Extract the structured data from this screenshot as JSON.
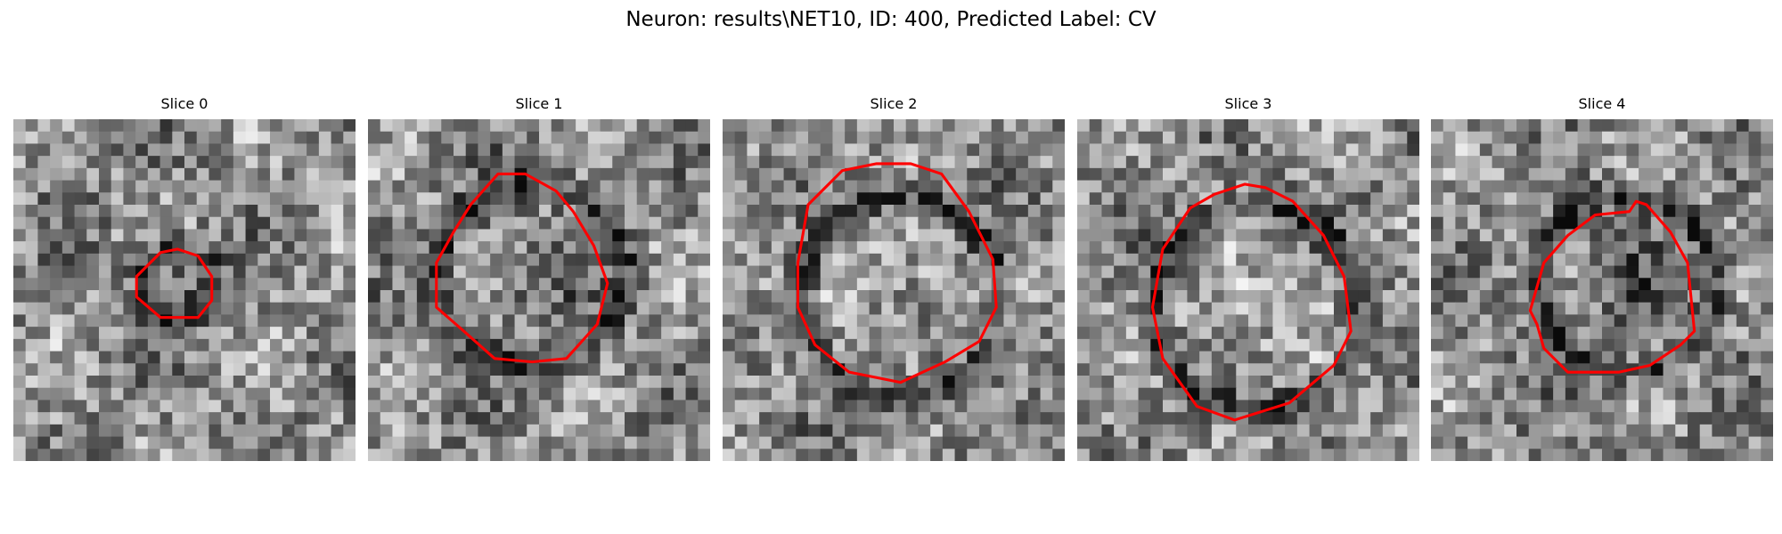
{
  "figure": {
    "title": "Neuron: results\\NET10, ID: 400, Predicted Label: CV"
  },
  "colors": {
    "contour": "#ff0000"
  },
  "panels": [
    {
      "title": "Slice 0",
      "center": [
        0.48,
        0.48
      ],
      "radius": 0.1,
      "darkness": 0.45,
      "contour": [
        [
          0.48,
          0.38
        ],
        [
          0.54,
          0.4
        ],
        [
          0.58,
          0.46
        ],
        [
          0.58,
          0.53
        ],
        [
          0.54,
          0.58
        ],
        [
          0.43,
          0.58
        ],
        [
          0.36,
          0.52
        ],
        [
          0.36,
          0.46
        ],
        [
          0.43,
          0.39
        ]
      ]
    },
    {
      "title": "Slice 1",
      "center": [
        0.48,
        0.45
      ],
      "radius": 0.27,
      "darkness": 0.25,
      "contour": [
        [
          0.3,
          0.25
        ],
        [
          0.38,
          0.16
        ],
        [
          0.46,
          0.16
        ],
        [
          0.55,
          0.21
        ],
        [
          0.6,
          0.27
        ],
        [
          0.66,
          0.37
        ],
        [
          0.7,
          0.48
        ],
        [
          0.67,
          0.6
        ],
        [
          0.58,
          0.7
        ],
        [
          0.48,
          0.71
        ],
        [
          0.37,
          0.7
        ],
        [
          0.28,
          0.62
        ],
        [
          0.2,
          0.55
        ],
        [
          0.2,
          0.42
        ],
        [
          0.25,
          0.33
        ]
      ]
    },
    {
      "title": "Slice 2",
      "center": [
        0.52,
        0.52
      ],
      "radius": 0.29,
      "darkness": -0.3,
      "contour": [
        [
          0.25,
          0.25
        ],
        [
          0.35,
          0.15
        ],
        [
          0.45,
          0.13
        ],
        [
          0.55,
          0.13
        ],
        [
          0.64,
          0.16
        ],
        [
          0.72,
          0.27
        ],
        [
          0.79,
          0.41
        ],
        [
          0.8,
          0.55
        ],
        [
          0.75,
          0.65
        ],
        [
          0.65,
          0.71
        ],
        [
          0.52,
          0.77
        ],
        [
          0.37,
          0.74
        ],
        [
          0.27,
          0.66
        ],
        [
          0.22,
          0.55
        ],
        [
          0.22,
          0.42
        ]
      ]
    },
    {
      "title": "Slice 3",
      "center": [
        0.52,
        0.55
      ],
      "radius": 0.3,
      "darkness": -0.3,
      "contour": [
        [
          0.33,
          0.26
        ],
        [
          0.4,
          0.22
        ],
        [
          0.49,
          0.19
        ],
        [
          0.55,
          0.2
        ],
        [
          0.63,
          0.24
        ],
        [
          0.72,
          0.34
        ],
        [
          0.78,
          0.46
        ],
        [
          0.8,
          0.62
        ],
        [
          0.75,
          0.72
        ],
        [
          0.62,
          0.83
        ],
        [
          0.46,
          0.88
        ],
        [
          0.35,
          0.84
        ],
        [
          0.25,
          0.7
        ],
        [
          0.22,
          0.55
        ],
        [
          0.25,
          0.38
        ]
      ]
    },
    {
      "title": "Slice 4",
      "center": [
        0.58,
        0.48
      ],
      "radius": 0.26,
      "darkness": 0.3,
      "contour": [
        [
          0.33,
          0.42
        ],
        [
          0.4,
          0.34
        ],
        [
          0.48,
          0.28
        ],
        [
          0.58,
          0.27
        ],
        [
          0.6,
          0.24
        ],
        [
          0.63,
          0.25
        ],
        [
          0.7,
          0.33
        ],
        [
          0.75,
          0.42
        ],
        [
          0.77,
          0.62
        ],
        [
          0.73,
          0.66
        ],
        [
          0.64,
          0.72
        ],
        [
          0.55,
          0.74
        ],
        [
          0.4,
          0.74
        ],
        [
          0.33,
          0.67
        ],
        [
          0.31,
          0.6
        ],
        [
          0.29,
          0.56
        ]
      ]
    }
  ]
}
